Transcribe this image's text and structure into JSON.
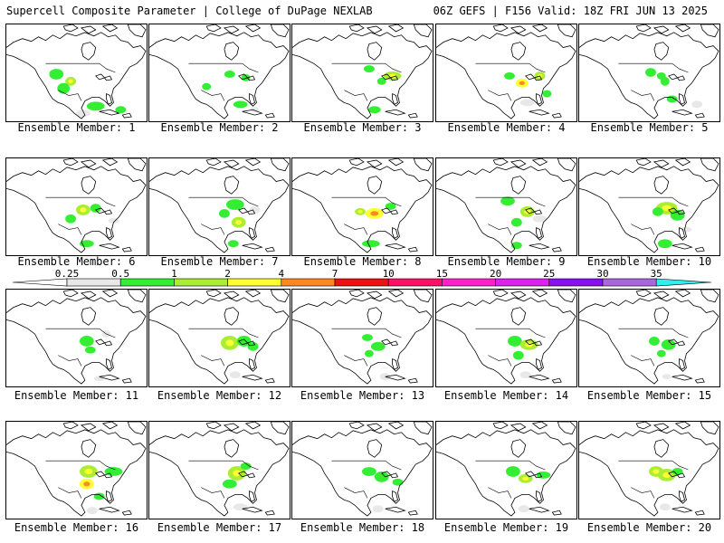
{
  "header": {
    "title": "Supercell Composite Parameter | College of DuPage NEXLAB",
    "run": "06Z GEFS | F156 Valid: 18Z FRI JUN 13 2025"
  },
  "colorbar": {
    "ticks": [
      "0.25",
      "0.5",
      "1",
      "2",
      "4",
      "7",
      "10",
      "15",
      "20",
      "25",
      "30",
      "35"
    ],
    "colors": [
      "#ffffff",
      "#e8e8e8",
      "#33ee33",
      "#aaee33",
      "#ffff33",
      "#ff8822",
      "#ee1111",
      "#ff1166",
      "#ff22cc",
      "#dd22ee",
      "#8811ee",
      "#aa66dd",
      "#33eeee"
    ]
  },
  "panels": [
    {
      "label": "Ensemble Member: 1"
    },
    {
      "label": "Ensemble Member: 2"
    },
    {
      "label": "Ensemble Member: 3"
    },
    {
      "label": "Ensemble Member: 4"
    },
    {
      "label": "Ensemble Member: 5"
    },
    {
      "label": "Ensemble Member: 6"
    },
    {
      "label": "Ensemble Member: 7"
    },
    {
      "label": "Ensemble Member: 8"
    },
    {
      "label": "Ensemble Member: 9"
    },
    {
      "label": "Ensemble Member: 10"
    },
    {
      "label": "Ensemble Member: 11"
    },
    {
      "label": "Ensemble Member: 12"
    },
    {
      "label": "Ensemble Member: 13"
    },
    {
      "label": "Ensemble Member: 14"
    },
    {
      "label": "Ensemble Member: 15"
    },
    {
      "label": "Ensemble Member: 16"
    },
    {
      "label": "Ensemble Member: 17"
    },
    {
      "label": "Ensemble Member: 18"
    },
    {
      "label": "Ensemble Member: 19"
    },
    {
      "label": "Ensemble Member: 20"
    }
  ]
}
